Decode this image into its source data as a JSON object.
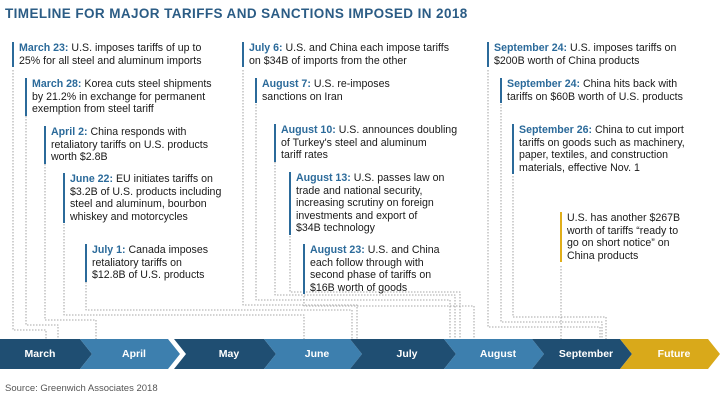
{
  "title": "TIMELINE FOR MAJOR TARIFFS AND SANCTIONS IMPOSED IN 2018",
  "events": [
    {
      "date": "March 23:",
      "lines": [
        "U.S. imposes tariffs of up to",
        "25% for all steel and aluminum imports"
      ]
    },
    {
      "date": "March 28:",
      "lines": [
        "Korea cuts steel shipments",
        "by 21.2% in exchange for permanent",
        "exemption from steel tariff"
      ]
    },
    {
      "date": "April 2:",
      "lines": [
        "China responds with",
        "retaliatory tariffs on U.S. products",
        "worth $2.8B"
      ]
    },
    {
      "date": "June 22:",
      "lines": [
        "EU initiates tariffs on",
        "$3.2B of U.S. products including",
        "steel and aluminum, bourbon",
        "whiskey and motorcycles"
      ]
    },
    {
      "date": "July 1:",
      "lines": [
        "Canada imposes",
        "retaliatory tariffs on",
        "$12.8B of U.S. products"
      ]
    },
    {
      "date": "July 6:",
      "lines": [
        "U.S. and China each impose tariffs",
        "on $34B of imports from the other"
      ]
    },
    {
      "date": "August 7:",
      "lines": [
        "U.S. re-imposes",
        "sanctions on Iran"
      ]
    },
    {
      "date": "August 10:",
      "lines": [
        "U.S. announces doubling",
        "of Turkey's steel and aluminum",
        "tariff rates"
      ]
    },
    {
      "date": "August 13:",
      "lines": [
        "U.S. passes law on",
        "trade and national security,",
        "increasing scrutiny on foreign",
        "investments and export of",
        "$34B technology"
      ]
    },
    {
      "date": "August 23:",
      "lines": [
        "U.S. and China",
        "each follow through with",
        "second phase of tariffs on",
        "$16B worth of goods"
      ]
    },
    {
      "date": "September 24:",
      "lines": [
        "U.S. imposes tariffs on",
        "$200B worth of China products"
      ]
    },
    {
      "date": "September 24:",
      "lines": [
        "China hits back with",
        "tariffs on $60B worth of U.S. products"
      ]
    },
    {
      "date": "September 26:",
      "lines": [
        "China to cut import",
        "tariffs on goods such as machinery,",
        "paper, textiles, and construction",
        "materials, effective Nov. 1"
      ]
    },
    {
      "date": "",
      "lines": [
        "U.S. has another $267B",
        "worth of tariffs “ready to",
        "go on short notice” on",
        "China products"
      ]
    }
  ],
  "timeline": [
    "March",
    "April",
    "May",
    "June",
    "July",
    "August",
    "September",
    "Future"
  ],
  "colors": {
    "accent": "#2b6a9a",
    "title": "#2b5c85",
    "bar_dark": "#1f4e72",
    "bar_light": "#3d7fae",
    "future": "#d9a91a"
  },
  "source": "Source: Greenwich Associates 2018"
}
